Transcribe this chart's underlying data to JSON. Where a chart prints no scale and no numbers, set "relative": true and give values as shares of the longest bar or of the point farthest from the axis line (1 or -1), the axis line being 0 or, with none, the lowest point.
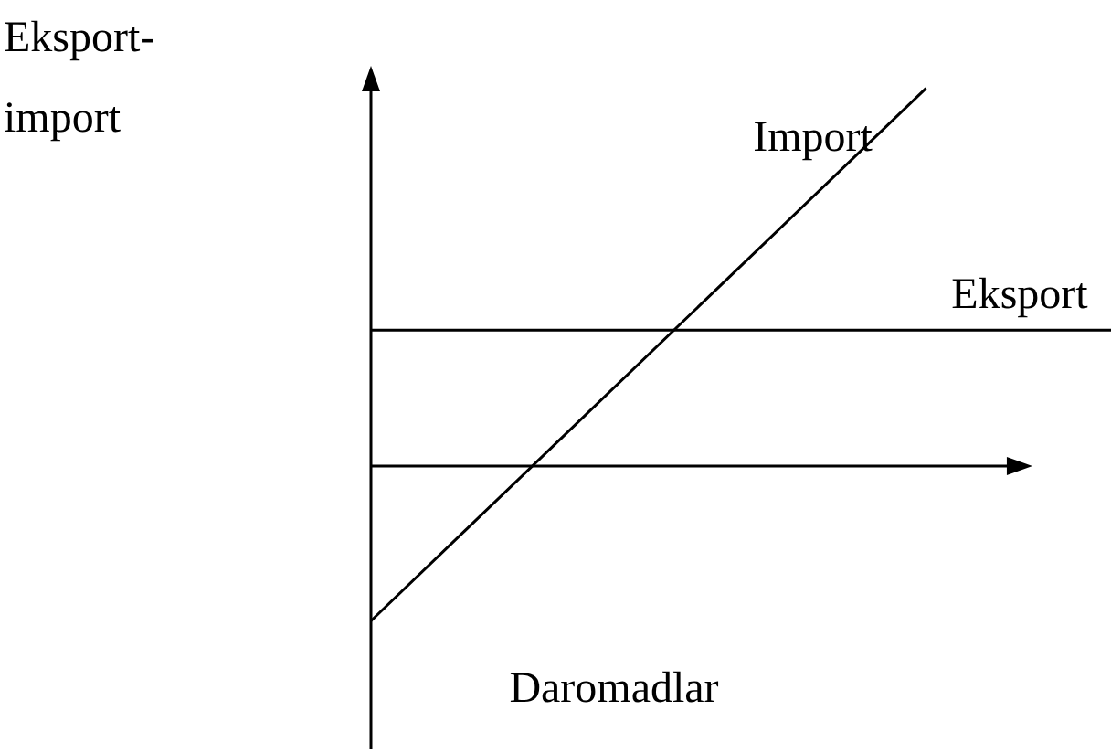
{
  "chart_data": {
    "type": "line",
    "relative": true,
    "ylabel": "Eksport-import",
    "xlabel": "Daromadlar",
    "categories": [
      null,
      null,
      null,
      null,
      null
    ],
    "series": [
      {
        "name": "Import",
        "color": "#000000",
        "values": [
          -0.41,
          0.06,
          0.53,
          1.0,
          null
        ]
      },
      {
        "name": "Eksport",
        "color": "#000000",
        "values": [
          0.36,
          0.36,
          0.36,
          0.36,
          0.36
        ]
      }
    ],
    "marker": "none",
    "line_style": "solid"
  }
}
